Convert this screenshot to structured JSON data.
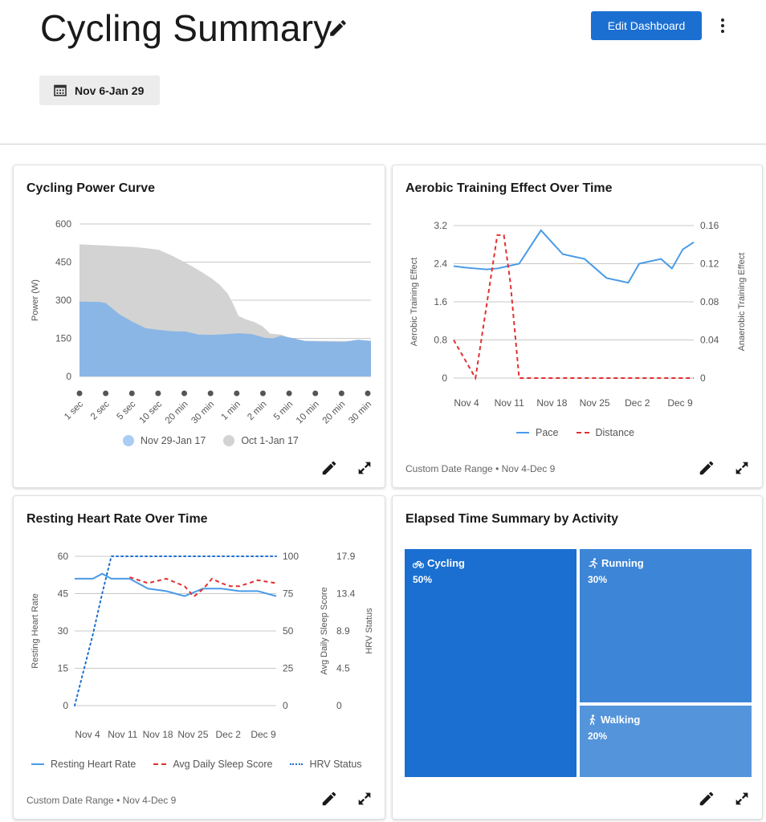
{
  "header": {
    "title": "Cycling Summary",
    "edit_button": "Edit Dashboard",
    "date_range": "Nov 6-Jan 29"
  },
  "colors": {
    "primary": "#1b6fd1",
    "series_blue": "#4a9be8",
    "series_red": "#e03030",
    "area_blue": "#8ab6e6",
    "area_gray": "#d3d3d3"
  },
  "cards": {
    "power_curve": {
      "title": "Cycling Power Curve",
      "legend": [
        "Nov 29-Jan 17",
        "Oct 1-Jan 17"
      ]
    },
    "aerobic": {
      "title": "Aerobic Training Effect Over Time",
      "legend": [
        "Pace",
        "Distance"
      ],
      "footer_label": "Custom Date Range",
      "footer_range": "Nov 4-Dec 9"
    },
    "resting_hr": {
      "title": "Resting Heart Rate Over Time",
      "legend": [
        "Resting Heart Rate",
        "Avg Daily Sleep Score",
        "HRV Status"
      ],
      "footer_label": "Custom Date Range",
      "footer_range": "Nov 4-Dec 9"
    },
    "elapsed": {
      "title": "Elapsed Time Summary by Activity",
      "tiles": [
        {
          "name": "Cycling",
          "pct": "50%",
          "icon": "bike-icon",
          "color": "#1b6fd1"
        },
        {
          "name": "Running",
          "pct": "30%",
          "icon": "run-icon",
          "color": "#3d85d6"
        },
        {
          "name": "Walking",
          "pct": "20%",
          "icon": "walk-icon",
          "color": "#5494db"
        }
      ]
    }
  },
  "chart_data": [
    {
      "type": "area",
      "ylabel": "Power (W)",
      "ylim": [
        0,
        600
      ],
      "yticks": [
        0,
        150,
        300,
        450,
        600
      ],
      "categories": [
        "1 sec",
        "2 sec",
        "5 sec",
        "10 sec",
        "20 min",
        "30 min",
        "1 min",
        "2 min",
        "5 min",
        "10 min",
        "20 min",
        "30 min"
      ],
      "series": [
        {
          "name": "Oct 1-Jan 17",
          "color": "#d3d3d3",
          "x": [
            0,
            0.4,
            1,
            1.5,
            2,
            2.5,
            3,
            3.5,
            4,
            4.5,
            5,
            5.3,
            5.6,
            5.8,
            6,
            6.3,
            6.6,
            6.9,
            7.2,
            7.6,
            8,
            8.5,
            9,
            9.5,
            10,
            10.5,
            11
          ],
          "values": [
            520,
            518,
            515,
            512,
            510,
            505,
            498,
            475,
            448,
            418,
            385,
            360,
            325,
            285,
            238,
            224,
            214,
            198,
            168,
            165,
            150,
            140,
            140,
            140,
            140,
            140,
            140
          ]
        },
        {
          "name": "Nov 29-Jan 17",
          "color": "#8ab6e6",
          "x": [
            0,
            0.8,
            1,
            1.5,
            2,
            2.5,
            3,
            3.5,
            4,
            4.5,
            5,
            5.5,
            6,
            6.5,
            7,
            7.3,
            7.6,
            8,
            8.5,
            9,
            9.5,
            10,
            10.5,
            11
          ],
          "values": [
            295,
            293,
            288,
            245,
            215,
            190,
            183,
            178,
            177,
            165,
            164,
            166,
            170,
            167,
            152,
            150,
            160,
            152,
            140,
            138,
            137,
            136,
            145,
            140
          ]
        }
      ]
    },
    {
      "type": "line",
      "ylabel": "Aerobic Training Effect",
      "y2label": "Anaerobic Training Effect",
      "ylim": [
        0,
        3.2
      ],
      "yticks": [
        0,
        0.8,
        1.6,
        2.4,
        3.2
      ],
      "y2lim": [
        0,
        0.16
      ],
      "y2ticks": [
        0,
        0.04,
        0.08,
        0.12,
        0.16
      ],
      "xticks": [
        "Nov 4",
        "Nov 11",
        "Nov 18",
        "Nov 25",
        "Dec 2",
        "Dec 9"
      ],
      "series": [
        {
          "name": "Pace",
          "axis": "left",
          "color": "#4a9be8",
          "style": "solid",
          "x": [
            0,
            0.5,
            1,
            1.5,
            2,
            2.5,
            3,
            3.5,
            4,
            4.5,
            5,
            5.5,
            6,
            6.5,
            7,
            7.5,
            8,
            8.5,
            9,
            9.5,
            10,
            10.5,
            11
          ],
          "values": [
            2.35,
            2.32,
            2.3,
            2.28,
            2.3,
            2.35,
            2.4,
            2.75,
            3.1,
            2.85,
            2.6,
            2.55,
            2.5,
            2.3,
            2.1,
            2.05,
            2.0,
            2.4,
            2.45,
            2.5,
            2.3,
            2.7,
            2.85
          ]
        },
        {
          "name": "Distance",
          "axis": "right",
          "color": "#e03030",
          "style": "dashed",
          "x": [
            0,
            1,
            2,
            2.3,
            2.6,
            3,
            4,
            5,
            6,
            7,
            8,
            9,
            10,
            11
          ],
          "values": [
            0.04,
            0.0,
            0.15,
            0.15,
            0.1,
            0.0,
            0.0,
            0.0,
            0.0,
            0.0,
            0.0,
            0.0,
            0.0,
            0.0
          ]
        }
      ]
    },
    {
      "type": "line",
      "ylabel": "Resting Heart Rate",
      "y2label": "Avg Daily Sleep Score",
      "y3label": "HRV Status",
      "ylim": [
        0,
        60
      ],
      "yticks": [
        0,
        15,
        30,
        45,
        60
      ],
      "y2lim": [
        0,
        100
      ],
      "y2ticks": [
        0,
        25,
        50,
        75,
        100
      ],
      "y3ticks": [
        "0",
        "4.5",
        "8.9",
        "13.4",
        "17.9"
      ],
      "xticks": [
        "Nov 4",
        "Nov 11",
        "Nov 18",
        "Nov 25",
        "Dec 2",
        "Dec 9"
      ],
      "series": [
        {
          "name": "Resting Heart Rate",
          "axis": "left",
          "color": "#4a9be8",
          "style": "solid",
          "x": [
            0,
            1,
            1.5,
            2,
            2.5,
            3,
            4,
            5,
            5.5,
            6,
            7,
            8,
            9,
            10,
            11
          ],
          "values": [
            51,
            51,
            53,
            51,
            51,
            51,
            47,
            46,
            45,
            44,
            47,
            47,
            46,
            46,
            44
          ]
        },
        {
          "name": "Avg Daily Sleep Score",
          "axis": "right",
          "color": "#e03030",
          "style": "dashed",
          "x": [
            3,
            4,
            5,
            6,
            6.5,
            7,
            7.5,
            8,
            8.5,
            9,
            10,
            11
          ],
          "values": [
            86,
            82,
            85,
            80,
            73,
            78,
            85,
            82,
            80,
            80,
            84,
            82
          ]
        },
        {
          "name": "HRV Status",
          "axis": "right",
          "color": "#1b6fd1",
          "style": "dotted",
          "x": [
            0,
            1,
            1.5,
            2,
            3,
            4,
            5,
            6,
            7,
            8,
            9,
            10,
            11
          ],
          "values": [
            0,
            48,
            75,
            100,
            100,
            100,
            100,
            100,
            100,
            100,
            100,
            100,
            100
          ]
        }
      ]
    },
    {
      "type": "treemap",
      "categories": [
        "Cycling",
        "Running",
        "Walking"
      ],
      "values": [
        50,
        30,
        20
      ]
    }
  ]
}
